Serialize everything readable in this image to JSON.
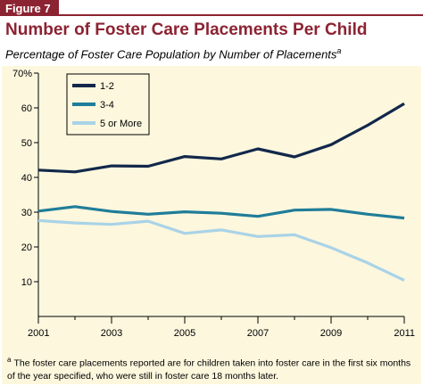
{
  "figure_label": "Figure 7",
  "title": "Number of Foster Care Placements Per Child",
  "subtitle": "Percentage of Foster Care Population by Number of Placements",
  "subtitle_note_marker": "a",
  "footnote": {
    "marker": "a",
    "text": "The foster care placements reported are for children taken into foster care in the first six months of the year specified, who were still in foster care 18 months later."
  },
  "colors": {
    "accent": "#8c2332",
    "panel_bg": "#fdf7de",
    "series_1_2": "#12284b",
    "series_3_4": "#1f7d99",
    "series_5_more": "#a9d3e7"
  },
  "chart_data": {
    "type": "line",
    "x": [
      2001,
      2002,
      2003,
      2004,
      2005,
      2006,
      2007,
      2008,
      2009,
      2010,
      2011
    ],
    "x_tick_labels": [
      "2001",
      "2003",
      "2005",
      "2007",
      "2009",
      "2011"
    ],
    "x_tick_values": [
      2001,
      2003,
      2005,
      2007,
      2009,
      2011
    ],
    "y_tick_labels": [
      "10",
      "20",
      "30",
      "40",
      "50",
      "60",
      "70%"
    ],
    "y_tick_values": [
      10,
      20,
      30,
      40,
      50,
      60,
      70
    ],
    "xlim": [
      2001,
      2011
    ],
    "ylim": [
      0,
      70
    ],
    "grid": false,
    "legend_position": "top-left",
    "series": [
      {
        "name": "1-2",
        "color": "#12284b",
        "values": [
          42.1,
          41.6,
          43.3,
          43.2,
          46.0,
          45.3,
          48.2,
          45.9,
          49.4,
          55.0,
          61.2
        ]
      },
      {
        "name": "3-4",
        "color": "#1f7d99",
        "values": [
          30.3,
          31.6,
          30.2,
          29.4,
          30.1,
          29.7,
          28.8,
          30.6,
          30.8,
          29.4,
          28.3
        ]
      },
      {
        "name": "5 or More",
        "color": "#a9d3e7",
        "values": [
          27.6,
          26.9,
          26.5,
          27.4,
          23.9,
          24.9,
          23.0,
          23.5,
          19.8,
          15.4,
          10.4
        ]
      }
    ]
  }
}
